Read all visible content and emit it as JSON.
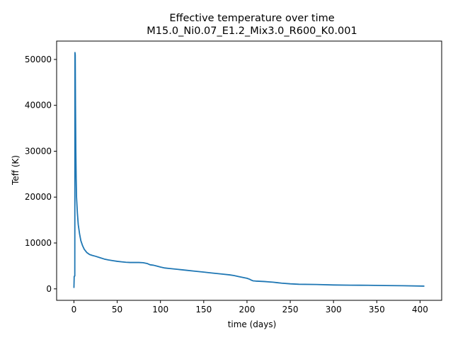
{
  "chart_data": {
    "type": "line",
    "title": "Effective temperature over time",
    "subtitle": "M15.0_Ni0.07_E1.2_Mix3.0_R600_K0.001",
    "xlabel": "time (days)",
    "ylabel": "Teff (K)",
    "xlim": [
      -20,
      425
    ],
    "ylim": [
      -2500,
      54000
    ],
    "xticks": [
      0,
      50,
      100,
      150,
      200,
      250,
      300,
      350,
      400
    ],
    "yticks": [
      0,
      10000,
      20000,
      30000,
      40000,
      50000
    ],
    "grid": false,
    "series": [
      {
        "color": "#1f77b4",
        "x": [
          0.0,
          0.3,
          0.6,
          1.0,
          1.2,
          1.5,
          1.8,
          2.2,
          2.6,
          3.0,
          4.0,
          5.0,
          6.5,
          8,
          10,
          12,
          15,
          18,
          21,
          25,
          30,
          35,
          40,
          45,
          50,
          55,
          60,
          65,
          70,
          75,
          80,
          85,
          88,
          92,
          95,
          100,
          105,
          110,
          120,
          130,
          140,
          150,
          160,
          170,
          180,
          185,
          190,
          195,
          200,
          203,
          205,
          207,
          210,
          220,
          230,
          235,
          240,
          250,
          260,
          280,
          300,
          320,
          340,
          360,
          380,
          405
        ],
        "y": [
          200,
          2700,
          2750,
          2800,
          51500,
          51000,
          40000,
          30000,
          24000,
          20000,
          16500,
          14000,
          12000,
          10500,
          9400,
          8600,
          7900,
          7500,
          7300,
          7100,
          6800,
          6500,
          6300,
          6150,
          6000,
          5900,
          5800,
          5750,
          5750,
          5750,
          5700,
          5500,
          5250,
          5150,
          5000,
          4750,
          4550,
          4450,
          4250,
          4050,
          3850,
          3650,
          3450,
          3250,
          3050,
          2900,
          2700,
          2500,
          2300,
          2100,
          1900,
          1750,
          1700,
          1600,
          1450,
          1350,
          1250,
          1100,
          1000,
          950,
          850,
          800,
          780,
          720,
          680,
          600
        ]
      }
    ]
  }
}
